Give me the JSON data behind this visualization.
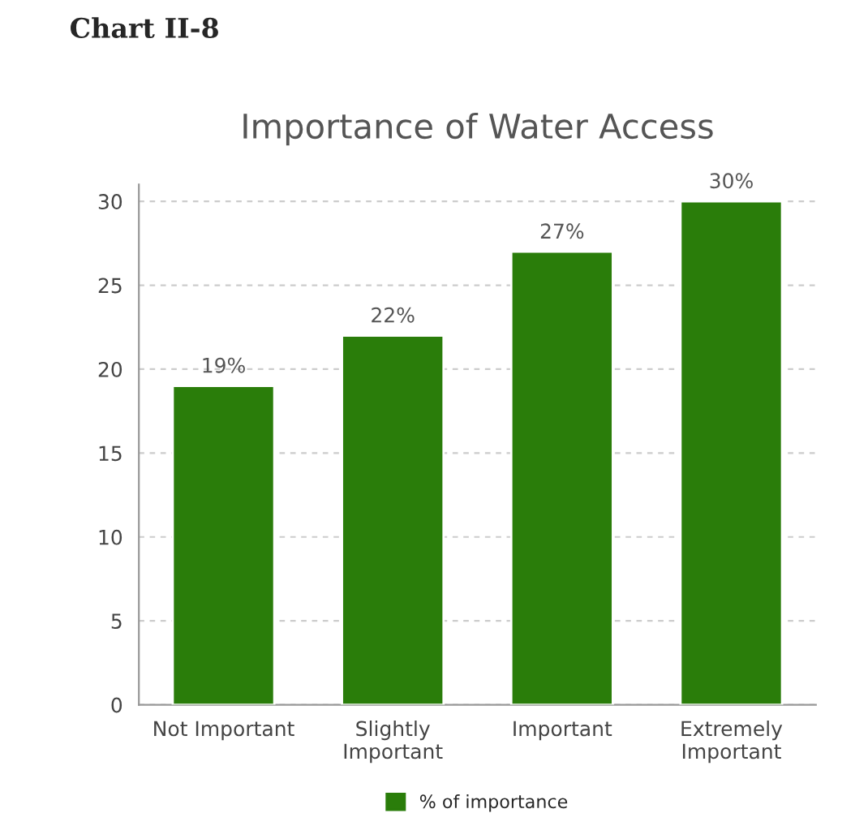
{
  "chart_data": {
    "type": "bar",
    "title": "Chart II-8",
    "subtitle": "Importance of Water Access",
    "categories": [
      "Not Important",
      "Slightly\nImportant",
      "Important",
      "Extremely\nImportant"
    ],
    "series": [
      {
        "name": "% of importance",
        "color": "#2a7d0a",
        "values": [
          19,
          22,
          27,
          30
        ],
        "value_labels": [
          "19%",
          "22%",
          "27%",
          "30%"
        ]
      }
    ],
    "ylim": [
      0,
      31
    ],
    "yticks": [
      0,
      5,
      10,
      15,
      20,
      25,
      30
    ],
    "grid": "y",
    "legend": "bottom"
  }
}
